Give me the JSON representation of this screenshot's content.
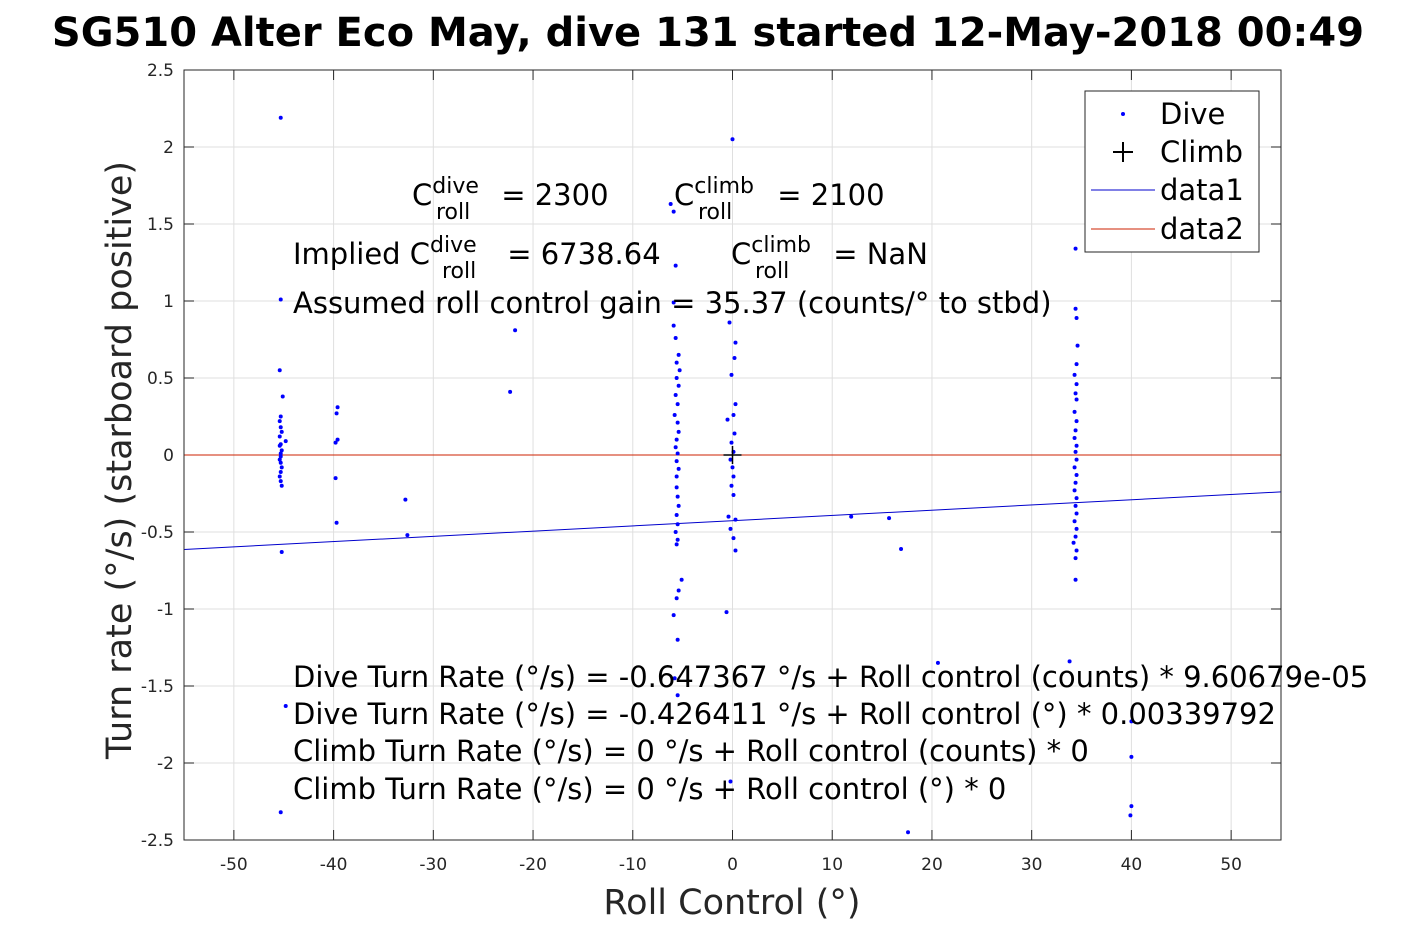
{
  "chart_data": {
    "type": "scatter",
    "title": "SG510 Alter Eco May, dive 131 started 12-May-2018 00:49",
    "xlabel": "Roll Control (°)",
    "ylabel": "Turn rate (°/s) (starboard positive)",
    "xlim": [
      -55,
      55
    ],
    "ylim": [
      -2.5,
      2.5
    ],
    "xticks": [
      -50,
      -40,
      -30,
      -20,
      -10,
      0,
      10,
      20,
      30,
      40,
      50
    ],
    "yticks": [
      -2.5,
      -2,
      -1.5,
      -1,
      -0.5,
      0,
      0.5,
      1,
      1.5,
      2,
      2.5
    ],
    "xtick_labels": [
      "-50",
      "-40",
      "-30",
      "-20",
      "-10",
      "0",
      "10",
      "20",
      "30",
      "40",
      "50"
    ],
    "ytick_labels": [
      "-2.5",
      "-2",
      "-1.5",
      "-1",
      "-0.5",
      "0",
      "0.5",
      "1",
      "1.5",
      "2",
      "2.5"
    ],
    "grid": true,
    "legend_position": "top-right",
    "colors": {
      "dive": "#0000ff",
      "climb": "#000000",
      "data1": "#0000cc",
      "data2": "#cc2200"
    },
    "series": [
      {
        "name": "Dive",
        "marker": "dot",
        "points": [
          [
            -45.3,
            2.19
          ],
          [
            -45.3,
            1.01
          ],
          [
            -45.4,
            0.55
          ],
          [
            -45.1,
            0.38
          ],
          [
            -45.3,
            0.25
          ],
          [
            -45.4,
            0.22
          ],
          [
            -45.3,
            0.18
          ],
          [
            -45.2,
            0.15
          ],
          [
            -45.4,
            0.12
          ],
          [
            -44.8,
            0.09
          ],
          [
            -45.3,
            0.07
          ],
          [
            -45.4,
            0.06
          ],
          [
            -45.2,
            0.03
          ],
          [
            -45.3,
            0.01
          ],
          [
            -45.3,
            -0.01
          ],
          [
            -45.4,
            -0.03
          ],
          [
            -45.3,
            -0.05
          ],
          [
            -45.2,
            -0.08
          ],
          [
            -45.3,
            -0.11
          ],
          [
            -45.4,
            -0.14
          ],
          [
            -45.3,
            -0.17
          ],
          [
            -45.2,
            -0.2
          ],
          [
            -45.2,
            -0.63
          ],
          [
            -44.8,
            -1.63
          ],
          [
            -45.3,
            -2.32
          ],
          [
            -39.6,
            0.31
          ],
          [
            -39.7,
            0.27
          ],
          [
            -39.6,
            0.1
          ],
          [
            -39.8,
            0.08
          ],
          [
            -39.8,
            -0.15
          ],
          [
            -39.7,
            -0.44
          ],
          [
            -32.8,
            -0.29
          ],
          [
            -32.6,
            -0.52
          ],
          [
            -22.3,
            0.41
          ],
          [
            -21.8,
            0.81
          ],
          [
            -6.2,
            1.63
          ],
          [
            -5.9,
            1.58
          ],
          [
            -5.7,
            1.23
          ],
          [
            -5.9,
            0.99
          ],
          [
            -5.9,
            0.84
          ],
          [
            -5.7,
            0.76
          ],
          [
            -5.4,
            0.65
          ],
          [
            -5.6,
            0.6
          ],
          [
            -5.3,
            0.55
          ],
          [
            -5.6,
            0.5
          ],
          [
            -5.4,
            0.45
          ],
          [
            -5.7,
            0.39
          ],
          [
            -5.5,
            0.33
          ],
          [
            -5.8,
            0.26
          ],
          [
            -5.5,
            0.21
          ],
          [
            -5.4,
            0.15
          ],
          [
            -5.6,
            0.1
          ],
          [
            -5.7,
            0.05
          ],
          [
            -5.5,
            0.01
          ],
          [
            -5.6,
            -0.04
          ],
          [
            -5.4,
            -0.09
          ],
          [
            -5.6,
            -0.14
          ],
          [
            -5.6,
            -0.21
          ],
          [
            -5.5,
            -0.27
          ],
          [
            -5.4,
            -0.33
          ],
          [
            -5.6,
            -0.39
          ],
          [
            -5.5,
            -0.45
          ],
          [
            -5.7,
            -0.5
          ],
          [
            -5.5,
            -0.55
          ],
          [
            -5.6,
            -0.58
          ],
          [
            -5.1,
            -0.81
          ],
          [
            -5.4,
            -0.88
          ],
          [
            -5.6,
            -0.93
          ],
          [
            -5.9,
            -1.04
          ],
          [
            -5.5,
            -1.2
          ],
          [
            -5.8,
            -1.45
          ],
          [
            -5.5,
            -1.56
          ],
          [
            0.0,
            2.05
          ],
          [
            -0.3,
            0.86
          ],
          [
            0.3,
            0.73
          ],
          [
            0.2,
            0.63
          ],
          [
            -0.1,
            0.52
          ],
          [
            0.3,
            0.33
          ],
          [
            0.1,
            0.26
          ],
          [
            -0.5,
            0.23
          ],
          [
            0.2,
            0.14
          ],
          [
            -0.1,
            0.08
          ],
          [
            0.1,
            0.02
          ],
          [
            -0.2,
            -0.03
          ],
          [
            0.0,
            -0.08
          ],
          [
            0.1,
            -0.14
          ],
          [
            -0.1,
            -0.2
          ],
          [
            0.1,
            -0.26
          ],
          [
            -0.4,
            -0.4
          ],
          [
            0.3,
            -0.42
          ],
          [
            -0.2,
            -0.48
          ],
          [
            0.1,
            -0.54
          ],
          [
            0.3,
            -0.62
          ],
          [
            -0.6,
            -1.02
          ],
          [
            -0.2,
            -2.12
          ],
          [
            11.9,
            -0.4
          ],
          [
            15.7,
            -0.41
          ],
          [
            16.9,
            -0.61
          ],
          [
            17.6,
            -2.45
          ],
          [
            20.6,
            -1.35
          ],
          [
            34.4,
            1.34
          ],
          [
            34.4,
            0.95
          ],
          [
            34.5,
            0.89
          ],
          [
            34.6,
            0.71
          ],
          [
            34.5,
            0.59
          ],
          [
            34.3,
            0.52
          ],
          [
            34.5,
            0.46
          ],
          [
            34.4,
            0.4
          ],
          [
            34.5,
            0.36
          ],
          [
            34.3,
            0.28
          ],
          [
            34.5,
            0.22
          ],
          [
            34.4,
            0.16
          ],
          [
            34.3,
            0.11
          ],
          [
            34.5,
            0.06
          ],
          [
            34.4,
            0.02
          ],
          [
            34.5,
            -0.03
          ],
          [
            34.3,
            -0.08
          ],
          [
            34.5,
            -0.13
          ],
          [
            34.4,
            -0.18
          ],
          [
            34.3,
            -0.23
          ],
          [
            34.5,
            -0.28
          ],
          [
            34.4,
            -0.33
          ],
          [
            34.5,
            -0.38
          ],
          [
            34.3,
            -0.43
          ],
          [
            34.5,
            -0.48
          ],
          [
            34.4,
            -0.53
          ],
          [
            34.2,
            -0.57
          ],
          [
            34.5,
            -0.62
          ],
          [
            34.4,
            -0.67
          ],
          [
            34.4,
            -0.81
          ],
          [
            33.8,
            -1.34
          ],
          [
            40.0,
            -1.73
          ],
          [
            40.0,
            -1.96
          ],
          [
            40.0,
            -2.28
          ],
          [
            39.9,
            -2.34
          ]
        ]
      },
      {
        "name": "Climb",
        "marker": "plus",
        "points": [
          [
            0.0,
            0.0
          ]
        ]
      }
    ],
    "lines": [
      {
        "name": "data1",
        "x": [
          -55,
          55
        ],
        "y": [
          -0.6133,
          -0.2395
        ]
      },
      {
        "name": "data2",
        "x": [
          -55,
          55
        ],
        "y": [
          0,
          0
        ]
      }
    ],
    "annotations": {
      "c_dive_prefix": "C",
      "c_dive_sup": "dive",
      "c_dive_sub": "roll",
      "c_dive_value": " = 2300",
      "c_climb_prefix": "C",
      "c_climb_sup": "climb",
      "c_climb_sub": "roll",
      "c_climb_value": " = 2100",
      "implied_prefix": "Implied C",
      "implied_dive_sup": "dive",
      "implied_dive_sub": "roll",
      "implied_dive_value": " = 6738.64",
      "implied_climb_prefix": "C",
      "implied_climb_sup": "climb",
      "implied_climb_sub": "roll",
      "implied_climb_value": " = NaN",
      "gain": "Assumed roll control gain = 35.37 (counts/° to stbd)",
      "fit_lines": [
        "Dive Turn Rate (°/s) = -0.647367 °/s + Roll control (counts) * 9.60679e-05",
        "Dive Turn Rate (°/s) = -0.426411 °/s + Roll control (°) * 0.00339792",
        "Climb Turn Rate (°/s) = 0 °/s + Roll control (counts) * 0",
        "Climb Turn Rate (°/s) = 0 °/s + Roll control (°) * 0"
      ]
    }
  }
}
